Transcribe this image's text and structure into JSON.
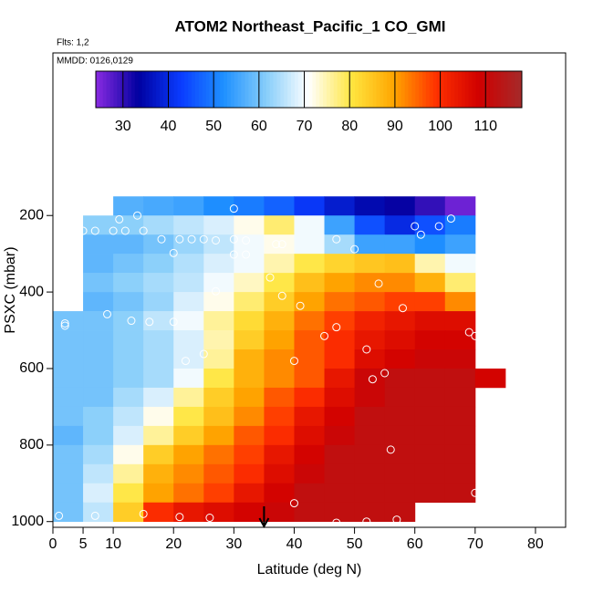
{
  "chart_data": {
    "type": "heatmap",
    "title": "ATOM2 Northeast_Pacific_1 CO_GMI",
    "notes": [
      "Flts: 1,2",
      "MMDD: 0126,0129"
    ],
    "x_label": "Latitude (deg N)",
    "y_label": "PSXC (mbar)",
    "xlim": [
      0,
      85
    ],
    "xticks": [
      0,
      5,
      10,
      20,
      30,
      40,
      50,
      60,
      70,
      80
    ],
    "ylim": [
      1015,
      -225
    ],
    "yticks": [
      200,
      400,
      600,
      800,
      1000
    ],
    "lat_bins": [
      0,
      5,
      10,
      15,
      20,
      25,
      30,
      35,
      40,
      45,
      50,
      55,
      60,
      65,
      70,
      75
    ],
    "rows": [
      {
        "pressure": 175,
        "values": [
          null,
          null,
          57,
          56,
          55,
          52,
          50,
          47,
          42,
          38,
          35,
          33,
          30,
          26,
          null
        ]
      },
      {
        "pressure": 225,
        "values": [
          null,
          62,
          62,
          64,
          66,
          68,
          72,
          78,
          70,
          55,
          45,
          40,
          45,
          50,
          null
        ]
      },
      {
        "pressure": 275,
        "values": [
          null,
          58,
          58,
          60,
          63,
          66,
          70,
          72,
          70,
          64,
          55,
          55,
          52,
          55,
          null
        ]
      },
      {
        "pressure": 325,
        "values": [
          null,
          58,
          60,
          62,
          65,
          68,
          70,
          75,
          80,
          83,
          85,
          86,
          75,
          70,
          null
        ]
      },
      {
        "pressure": 375,
        "values": [
          null,
          60,
          62,
          64,
          66,
          70,
          74,
          80,
          86,
          90,
          92,
          92,
          88,
          78,
          null
        ]
      },
      {
        "pressure": 425,
        "values": [
          null,
          58,
          60,
          63,
          68,
          72,
          78,
          84,
          90,
          94,
          96,
          98,
          98,
          92,
          null
        ]
      },
      {
        "pressure": 475,
        "values": [
          60,
          60,
          62,
          66,
          70,
          76,
          82,
          88,
          94,
          98,
          102,
          104,
          106,
          106,
          null
        ]
      },
      {
        "pressure": 525,
        "values": [
          60,
          60,
          62,
          64,
          68,
          75,
          84,
          90,
          96,
          100,
          104,
          106,
          108,
          108,
          null
        ]
      },
      {
        "pressure": 575,
        "values": [
          60,
          60,
          62,
          64,
          68,
          76,
          88,
          92,
          96,
          100,
          106,
          108,
          110,
          110,
          null
        ]
      },
      {
        "pressure": 625,
        "values": [
          60,
          60,
          62,
          64,
          70,
          80,
          88,
          92,
          96,
          104,
          110,
          112,
          112,
          112,
          108
        ]
      },
      {
        "pressure": 675,
        "values": [
          60,
          60,
          64,
          68,
          76,
          84,
          90,
          96,
          100,
          106,
          110,
          112,
          112,
          112,
          null
        ]
      },
      {
        "pressure": 725,
        "values": [
          60,
          62,
          66,
          72,
          80,
          86,
          92,
          98,
          104,
          108,
          112,
          112,
          112,
          112,
          null
        ]
      },
      {
        "pressure": 775,
        "values": [
          58,
          62,
          68,
          76,
          84,
          90,
          96,
          100,
          106,
          110,
          112,
          112,
          112,
          112,
          null
        ]
      },
      {
        "pressure": 825,
        "values": [
          60,
          64,
          72,
          84,
          90,
          94,
          98,
          104,
          108,
          112,
          112,
          112,
          112,
          112,
          null
        ]
      },
      {
        "pressure": 875,
        "values": [
          60,
          66,
          76,
          88,
          92,
          96,
          100,
          106,
          110,
          112,
          112,
          112,
          112,
          112,
          null
        ]
      },
      {
        "pressure": 925,
        "values": [
          60,
          68,
          80,
          90,
          94,
          98,
          104,
          108,
          112,
          112,
          112,
          112,
          112,
          112,
          null
        ]
      },
      {
        "pressure": 975,
        "values": [
          60,
          66,
          84,
          100,
          104,
          106,
          108,
          110,
          112,
          112,
          112,
          112,
          null,
          null,
          null
        ]
      }
    ],
    "colorbar": {
      "range": [
        24,
        118
      ],
      "ticks": [
        30,
        40,
        50,
        60,
        70,
        80,
        90,
        100,
        110
      ],
      "colors": [
        "#8a2be2",
        "#0000a0",
        "#0a3cff",
        "#1e90ff",
        "#87cefa",
        "#ffffff",
        "#ffe640",
        "#ffa500",
        "#ff3000",
        "#d00000",
        "#a52a2a"
      ]
    },
    "points": {
      "x": [
        11,
        14,
        30,
        66,
        60,
        64,
        61,
        3,
        5,
        7,
        10,
        12,
        15,
        18,
        21,
        23,
        25,
        27,
        30,
        32,
        37,
        38,
        47,
        50,
        20,
        30,
        32,
        36,
        27,
        38,
        41,
        54,
        58,
        9,
        2,
        2,
        13,
        16,
        20,
        45,
        47,
        69,
        70,
        52,
        25,
        22,
        40,
        55,
        53,
        71,
        56,
        70,
        40,
        1,
        7,
        15,
        21,
        26,
        47,
        52,
        57
      ],
      "y": [
        210,
        200,
        182,
        208,
        228,
        228,
        250,
        240,
        240,
        240,
        240,
        240,
        240,
        262,
        262,
        262,
        262,
        265,
        262,
        265,
        275,
        275,
        262,
        288,
        298,
        302,
        302,
        362,
        398,
        410,
        436,
        378,
        442,
        458,
        482,
        488,
        475,
        478,
        478,
        515,
        492,
        505,
        515,
        550,
        562,
        580,
        580,
        612,
        628,
        572,
        812,
        925,
        952,
        985,
        985,
        980,
        988,
        990,
        1003,
        1000,
        995
      ]
    },
    "arrow_lat": 35
  }
}
